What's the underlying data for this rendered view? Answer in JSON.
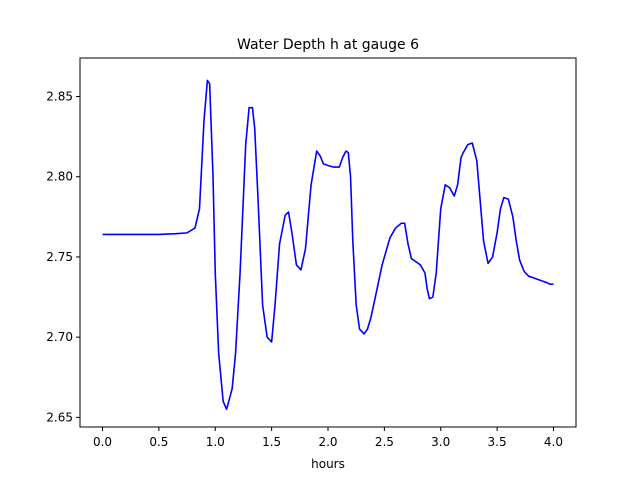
{
  "chart_data": {
    "type": "line",
    "title": "Water Depth h at gauge 6",
    "xlabel": "hours",
    "ylabel": "",
    "xlim": [
      -0.2,
      4.2
    ],
    "ylim": [
      2.644,
      2.874
    ],
    "xticks": [
      0.0,
      0.5,
      1.0,
      1.5,
      2.0,
      2.5,
      3.0,
      3.5,
      4.0
    ],
    "xtick_labels": [
      "0.0",
      "0.5",
      "1.0",
      "1.5",
      "2.0",
      "2.5",
      "3.0",
      "3.5",
      "4.0"
    ],
    "yticks": [
      2.65,
      2.7,
      2.75,
      2.8,
      2.85
    ],
    "ytick_labels": [
      "2.65",
      "2.70",
      "2.75",
      "2.80",
      "2.85"
    ],
    "grid": false,
    "series": [
      {
        "color": "#0000ff",
        "x": [
          0.0,
          0.5,
          0.65,
          0.75,
          0.82,
          0.86,
          0.9,
          0.93,
          0.95,
          0.98,
          1.0,
          1.03,
          1.07,
          1.1,
          1.12,
          1.15,
          1.18,
          1.22,
          1.27,
          1.3,
          1.33,
          1.35,
          1.38,
          1.42,
          1.46,
          1.5,
          1.53,
          1.57,
          1.62,
          1.65,
          1.68,
          1.72,
          1.76,
          1.8,
          1.85,
          1.9,
          1.93,
          1.96,
          2.0,
          2.05,
          2.1,
          2.13,
          2.16,
          2.18,
          2.2,
          2.22,
          2.25,
          2.28,
          2.32,
          2.35,
          2.38,
          2.42,
          2.48,
          2.55,
          2.6,
          2.65,
          2.68,
          2.71,
          2.74,
          2.78,
          2.82,
          2.86,
          2.88,
          2.9,
          2.93,
          2.96,
          3.0,
          3.04,
          3.08,
          3.12,
          3.15,
          3.18,
          3.2,
          3.24,
          3.28,
          3.32,
          3.35,
          3.38,
          3.42,
          3.46,
          3.5,
          3.53,
          3.56,
          3.6,
          3.64,
          3.67,
          3.7,
          3.74,
          3.78,
          3.82,
          3.86,
          3.9,
          3.94,
          3.97,
          4.0
        ],
        "y": [
          2.764,
          2.764,
          2.7645,
          2.765,
          2.768,
          2.78,
          2.835,
          2.86,
          2.858,
          2.8,
          2.74,
          2.69,
          2.66,
          2.655,
          2.66,
          2.668,
          2.69,
          2.74,
          2.82,
          2.843,
          2.843,
          2.83,
          2.785,
          2.72,
          2.7,
          2.697,
          2.72,
          2.758,
          2.776,
          2.778,
          2.765,
          2.745,
          2.742,
          2.755,
          2.795,
          2.816,
          2.813,
          2.808,
          2.807,
          2.806,
          2.806,
          2.812,
          2.816,
          2.815,
          2.8,
          2.76,
          2.72,
          2.705,
          2.702,
          2.705,
          2.712,
          2.725,
          2.745,
          2.762,
          2.768,
          2.771,
          2.771,
          2.758,
          2.749,
          2.747,
          2.745,
          2.74,
          2.73,
          2.724,
          2.725,
          2.74,
          2.78,
          2.795,
          2.793,
          2.788,
          2.795,
          2.812,
          2.815,
          2.82,
          2.821,
          2.81,
          2.785,
          2.76,
          2.746,
          2.75,
          2.765,
          2.78,
          2.787,
          2.786,
          2.775,
          2.76,
          2.748,
          2.741,
          2.738,
          2.737,
          2.736,
          2.735,
          2.734,
          2.733,
          2.733
        ]
      }
    ]
  }
}
